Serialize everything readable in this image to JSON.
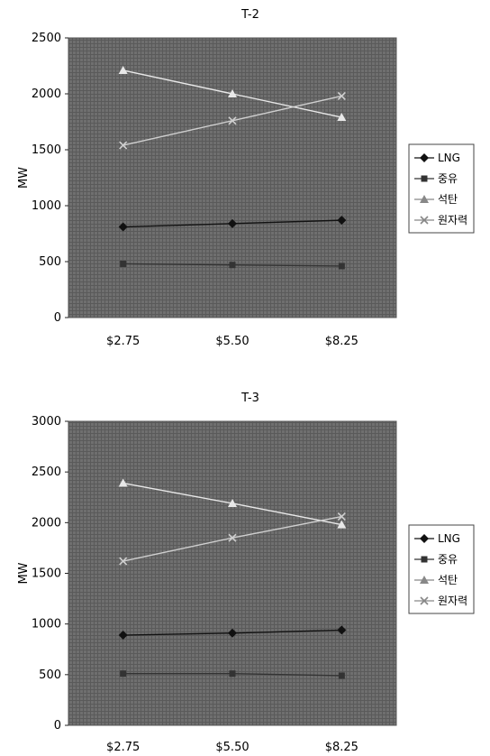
{
  "chart_data": [
    {
      "type": "line",
      "title": "T-2",
      "ylabel": "MW",
      "xlabel": "",
      "categories": [
        "$2.75",
        "$5.50",
        "$8.25"
      ],
      "ylim": [
        0,
        2500
      ],
      "yticks": [
        0,
        500,
        1000,
        1500,
        2000,
        2500
      ],
      "grid": true,
      "legend": "right",
      "series": [
        {
          "name": "LNG",
          "values": [
            810,
            840,
            870
          ],
          "color": "#111111",
          "marker": "diamond"
        },
        {
          "name": "중유",
          "values": [
            480,
            470,
            460
          ],
          "color": "#333333",
          "marker": "square"
        },
        {
          "name": "석탄",
          "values": [
            2210,
            2000,
            1790
          ],
          "color": "#e8e8e8",
          "marker": "triangle"
        },
        {
          "name": "원자력",
          "values": [
            1540,
            1760,
            1980
          ],
          "color": "#cfcfcf",
          "marker": "x"
        }
      ]
    },
    {
      "type": "line",
      "title": "T-3",
      "ylabel": "MW",
      "xlabel": "",
      "categories": [
        "$2.75",
        "$5.50",
        "$8.25"
      ],
      "ylim": [
        0,
        3000
      ],
      "yticks": [
        0,
        500,
        1000,
        1500,
        2000,
        2500,
        3000
      ],
      "grid": true,
      "legend": "right",
      "series": [
        {
          "name": "LNG",
          "values": [
            890,
            910,
            940
          ],
          "color": "#111111",
          "marker": "diamond"
        },
        {
          "name": "중유",
          "values": [
            510,
            510,
            490
          ],
          "color": "#333333",
          "marker": "square"
        },
        {
          "name": "석탄",
          "values": [
            2390,
            2190,
            1980
          ],
          "color": "#e8e8e8",
          "marker": "triangle"
        },
        {
          "name": "원자력",
          "values": [
            1620,
            1850,
            2060
          ],
          "color": "#cfcfcf",
          "marker": "x"
        }
      ]
    }
  ]
}
